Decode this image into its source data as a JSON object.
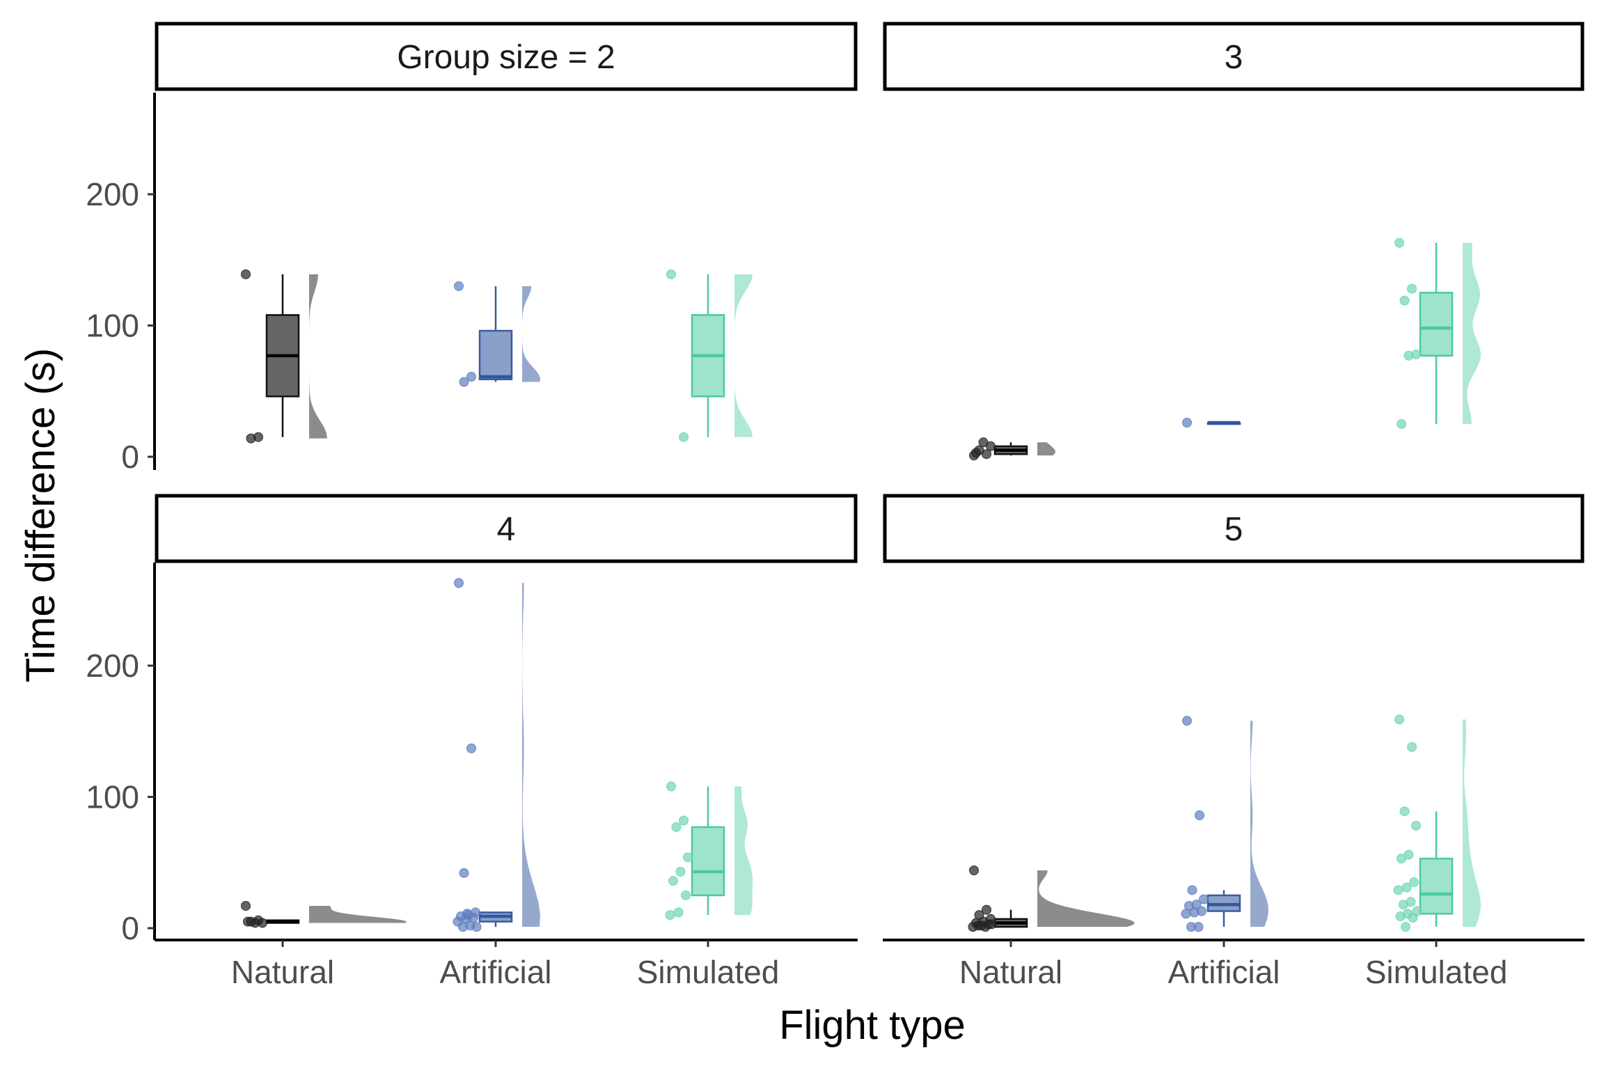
{
  "chart_data": {
    "type": "boxplot",
    "xlabel": "Flight type",
    "ylabel": "Time difference (s)",
    "categories": [
      "Natural",
      "Artificial",
      "Simulated"
    ],
    "y_ticks": [
      0,
      100,
      200
    ],
    "ylim": [
      -10,
      278
    ],
    "grid": false,
    "legend": "none",
    "colors": {
      "Natural": "#4d4d4d",
      "Artificial": "#3a5ba0",
      "Simulated": "#4cc9a0"
    },
    "facets": [
      {
        "label": "Group size =  2",
        "groups": {
          "Natural": {
            "box": {
              "min": 15,
              "q1": 46,
              "median": 77,
              "q3": 108,
              "max": 139
            },
            "points": [
              139,
              15,
              14
            ]
          },
          "Artificial": {
            "box": {
              "min": 57,
              "q1": 59,
              "median": 61,
              "q3": 96,
              "max": 130
            },
            "points": [
              130,
              61,
              57
            ]
          },
          "Simulated": {
            "box": {
              "min": 15,
              "q1": 46,
              "median": 77,
              "q3": 108,
              "max": 139
            },
            "points": [
              139,
              15
            ]
          }
        }
      },
      {
        "label": "3",
        "groups": {
          "Natural": {
            "box": {
              "min": 1,
              "q1": 2,
              "median": 5,
              "q3": 8,
              "max": 11
            },
            "points": [
              1,
              2,
              5,
              8,
              11,
              3
            ]
          },
          "Artificial": {
            "box": {
              "min": 26,
              "q1": 26,
              "median": 26,
              "q3": 26,
              "max": 26
            },
            "points": [
              26
            ]
          },
          "Simulated": {
            "box": {
              "min": 25,
              "q1": 77,
              "median": 98,
              "q3": 125,
              "max": 163
            },
            "points": [
              163,
              128,
              119,
              78,
              77,
              25
            ]
          }
        }
      },
      {
        "label": "4",
        "groups": {
          "Natural": {
            "box": {
              "min": 4,
              "q1": 4,
              "median": 5,
              "q3": 6,
              "max": 6
            },
            "points": [
              17,
              6,
              5,
              4,
              4,
              5
            ]
          },
          "Artificial": {
            "box": {
              "min": 1,
              "q1": 5,
              "median": 9,
              "q3": 12,
              "max": 12
            },
            "points": [
              263,
              137,
              42,
              12,
              10,
              9,
              8,
              7,
              5,
              2,
              1,
              1,
              11
            ]
          },
          "Simulated": {
            "box": {
              "min": 10,
              "q1": 25,
              "median": 43,
              "q3": 77,
              "max": 108
            },
            "points": [
              108,
              82,
              77,
              54,
              43,
              36,
              25,
              12,
              10
            ]
          }
        }
      },
      {
        "label": "5",
        "groups": {
          "Natural": {
            "box": {
              "min": 1,
              "q1": 1,
              "median": 4,
              "q3": 7,
              "max": 14
            },
            "points": [
              44,
              14,
              10,
              7,
              5,
              4,
              3,
              2,
              1,
              1,
              2,
              3
            ]
          },
          "Artificial": {
            "box": {
              "min": 1,
              "q1": 13,
              "median": 18,
              "q3": 25,
              "max": 29
            },
            "points": [
              158,
              86,
              29,
              22,
              18,
              17,
              13,
              12,
              11,
              1,
              1
            ]
          },
          "Simulated": {
            "box": {
              "min": 1,
              "q1": 11,
              "median": 26,
              "q3": 53,
              "max": 89
            },
            "points": [
              159,
              138,
              89,
              78,
              56,
              53,
              35,
              31,
              29,
              20,
              18,
              13,
              11,
              9,
              8,
              1
            ]
          }
        }
      }
    ]
  }
}
